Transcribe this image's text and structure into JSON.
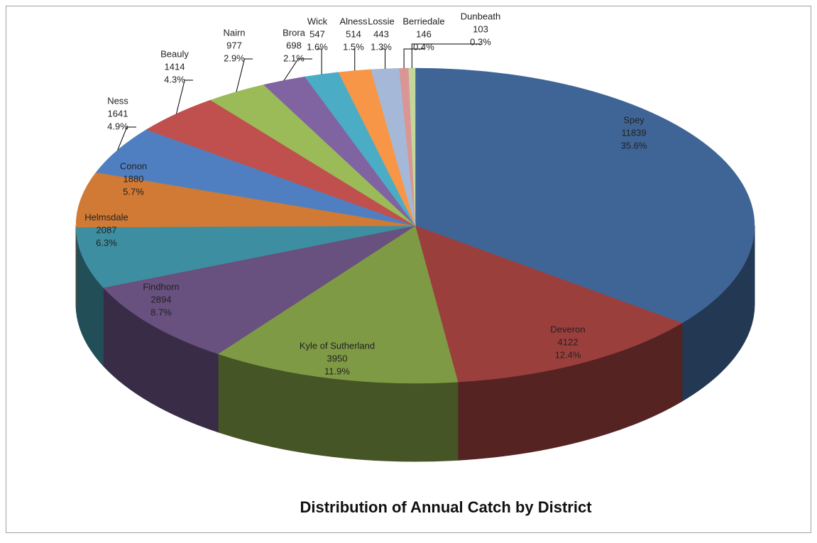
{
  "chart_data": {
    "type": "pie3d",
    "title": "Distribution of Annual Catch by District",
    "categories": [
      "Spey",
      "Deveron",
      "Kyle of Sutherland",
      "Findhorn",
      "Helmsdale",
      "Conon",
      "Ness",
      "Beauly",
      "Nairn",
      "Brora",
      "Wick",
      "Alness",
      "Lossie",
      "Berriedale",
      "Dunbeath"
    ],
    "values": [
      11839,
      4122,
      3950,
      2894,
      2087,
      1880,
      1641,
      1414,
      977,
      698,
      547,
      514,
      443,
      146,
      103
    ],
    "percent_labels": [
      "35.6%",
      "12.4%",
      "11.9%",
      "8.7%",
      "6.3%",
      "5.7%",
      "4.9%",
      "4.3%",
      "2.9%",
      "2.1%",
      "1.6%",
      "1.5%",
      "1.3%",
      "0.4%",
      "0.3%"
    ],
    "colors": [
      "#3f6596",
      "#9b3f3d",
      "#7f9a45",
      "#68507f",
      "#3d8ea0",
      "#d07a35",
      "#4f7fc0",
      "#c0504d",
      "#9bbb59",
      "#8064a2",
      "#4bacc6",
      "#f79646",
      "#a5b8d8",
      "#d99694",
      "#c3d69b"
    ]
  }
}
